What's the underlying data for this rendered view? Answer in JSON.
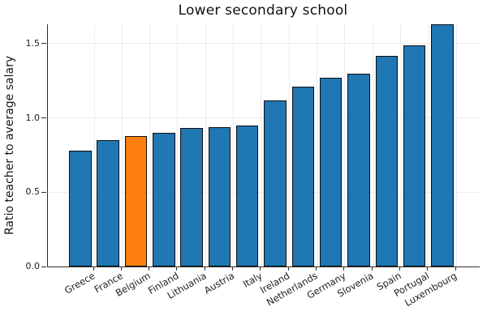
{
  "figure": {
    "background": "#ffffff"
  },
  "chart_data": {
    "type": "bar",
    "title": "Lower secondary school",
    "xlabel": "",
    "ylabel": "Ratio teacher to average salary",
    "categories": [
      "Greece",
      "France",
      "Belgium",
      "Finland",
      "Lithuania",
      "Austria",
      "Italy",
      "Ireland",
      "Netherlands",
      "Germany",
      "Slovenia",
      "Spain",
      "Portugal",
      "Luxembourg"
    ],
    "values": [
      0.78,
      0.85,
      0.88,
      0.9,
      0.93,
      0.94,
      0.95,
      1.12,
      1.21,
      1.27,
      1.3,
      1.42,
      1.49,
      1.63
    ],
    "highlighted_category": "Belgium",
    "highlight_index": 2,
    "yticks": [
      {
        "value": 0.0,
        "label": "0.0"
      },
      {
        "value": 0.5,
        "label": "0.5"
      },
      {
        "value": 1.0,
        "label": "1.0"
      },
      {
        "value": 1.5,
        "label": "1.5"
      }
    ],
    "ylim": [
      0,
      1.63
    ],
    "grid": "on",
    "legend": "none",
    "x_label_rotation_deg": 30,
    "colors": {
      "bar_default": "#1f77b4",
      "bar_highlight": "#ff7f0e",
      "bar_border": "#0e0e0e",
      "gridline": "#ececec",
      "axis_line": "#2d2d2d",
      "tick_label_text": "#1c1c1c",
      "title_text": "#111111"
    }
  }
}
